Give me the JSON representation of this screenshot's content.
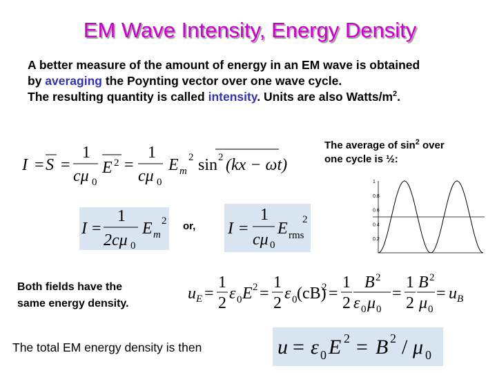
{
  "title": "EM Wave Intensity, Energy Density",
  "intro": {
    "line1": "A better measure of the amount of energy in an EM wave is obtained",
    "line2": [
      "by ",
      "averaging",
      " the Poynting vector over one wave cycle."
    ],
    "line3": [
      "The resulting quantity is called ",
      "intensity",
      ". Units are also Watts/m",
      "2",
      "."
    ]
  },
  "note": [
    "The average of sin",
    "2",
    " over",
    "one cycle is ½:"
  ],
  "graph_ticks": [
    "1",
    "0.8",
    "0.6",
    "0.4",
    "0.2"
  ],
  "eq1": [
    "I",
    "=",
    "S",
    "=",
    "1",
    "cμ",
    "0",
    "E",
    "2",
    "=",
    "1",
    "cμ",
    "0",
    "E",
    "m",
    "2",
    "sin",
    "2",
    "(kx − ωt)"
  ],
  "eq2": [
    "I",
    "=",
    "1",
    "2cμ",
    "0",
    "E",
    "m",
    "2"
  ],
  "or_label": "or,",
  "eq3": [
    "I",
    "=",
    "1",
    "cμ",
    "0",
    "E",
    "rms",
    "2"
  ],
  "both_fields": [
    "Both fields have the",
    "same energy density."
  ],
  "eq4": [
    "u",
    "E",
    "=",
    "1",
    "2",
    "ε",
    "0",
    "E",
    "2",
    "=",
    "1",
    "2",
    "ε",
    "0",
    "(cB)",
    "2",
    "=",
    "1",
    "2",
    "B",
    "2",
    "ε",
    "0",
    "μ",
    "0",
    "=",
    "1",
    "2",
    "B",
    "2",
    "μ",
    "0",
    "=",
    "u",
    "B"
  ],
  "total": "The total EM energy density is then",
  "eq5": [
    "u",
    "=",
    "ε",
    "0",
    "E",
    "2",
    "=",
    "B",
    "2",
    "/",
    "μ",
    "0"
  ]
}
